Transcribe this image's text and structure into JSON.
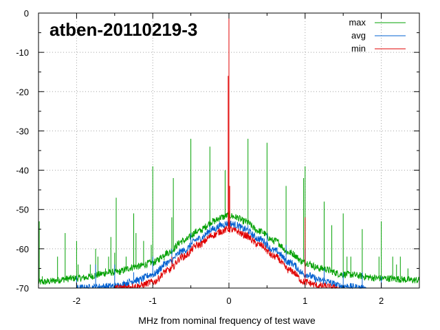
{
  "chart_data": {
    "type": "line",
    "title": "atben-20110219-3",
    "xlabel": "MHz from nominal frequency of test wave",
    "ylabel": "",
    "xlim": [
      -2.5,
      2.5
    ],
    "ylim": [
      -70,
      0
    ],
    "x_ticks": [
      -2,
      -1,
      0,
      1,
      2
    ],
    "y_ticks": [
      0,
      -10,
      -20,
      -30,
      -40,
      -50,
      -60,
      -70
    ],
    "x_tick_labels": [
      "-2",
      "-1",
      "0",
      "1",
      "2"
    ],
    "y_tick_labels": [
      "0",
      "-10",
      "-20",
      "-30",
      "-40",
      "-50",
      "-60",
      "-70"
    ],
    "grid": true,
    "legend_position": "top-right",
    "series": [
      {
        "name": "max",
        "color": "#00a000",
        "envelope": {
          "x": [
            -2.5,
            -2.0,
            -1.5,
            -1.2,
            -1.0,
            -0.8,
            -0.6,
            -0.4,
            -0.2,
            -0.1,
            0.0,
            0.1,
            0.2,
            0.4,
            0.6,
            0.8,
            1.0,
            1.2,
            1.5,
            2.0,
            2.5
          ],
          "y": [
            -68.5,
            -67.5,
            -66.0,
            -64.5,
            -63.5,
            -61.0,
            -58.0,
            -55.5,
            -53.0,
            -52.0,
            -51.5,
            -52.0,
            -53.0,
            -55.5,
            -58.0,
            -61.0,
            -63.5,
            -65.0,
            -66.5,
            -67.5,
            -68.0
          ]
        },
        "spikes": [
          {
            "x": -2.49,
            "y": -53
          },
          {
            "x": -2.45,
            "y": -67
          },
          {
            "x": -2.25,
            "y": -62
          },
          {
            "x": -2.15,
            "y": -56
          },
          {
            "x": -2.0,
            "y": -58
          },
          {
            "x": -1.98,
            "y": -64
          },
          {
            "x": -1.82,
            "y": -64
          },
          {
            "x": -1.75,
            "y": -60
          },
          {
            "x": -1.72,
            "y": -62
          },
          {
            "x": -1.62,
            "y": -65
          },
          {
            "x": -1.58,
            "y": -62
          },
          {
            "x": -1.55,
            "y": -57
          },
          {
            "x": -1.5,
            "y": -61
          },
          {
            "x": -1.48,
            "y": -47
          },
          {
            "x": -1.35,
            "y": -62
          },
          {
            "x": -1.25,
            "y": -51
          },
          {
            "x": -1.22,
            "y": -56
          },
          {
            "x": -1.12,
            "y": -58
          },
          {
            "x": -1.02,
            "y": -59
          },
          {
            "x": -1.0,
            "y": -39
          },
          {
            "x": -0.85,
            "y": -63
          },
          {
            "x": -0.75,
            "y": -52
          },
          {
            "x": -0.73,
            "y": -42
          },
          {
            "x": -0.5,
            "y": -32
          },
          {
            "x": -0.25,
            "y": -34
          },
          {
            "x": -0.05,
            "y": -40
          },
          {
            "x": 0.0,
            "y": 0
          },
          {
            "x": 0.25,
            "y": -32
          },
          {
            "x": 0.5,
            "y": -33
          },
          {
            "x": 0.75,
            "y": -44
          },
          {
            "x": 0.98,
            "y": -42
          },
          {
            "x": 1.0,
            "y": -39
          },
          {
            "x": 1.25,
            "y": -48
          },
          {
            "x": 1.35,
            "y": -54
          },
          {
            "x": 1.5,
            "y": -51
          },
          {
            "x": 1.55,
            "y": -62
          },
          {
            "x": 1.6,
            "y": -62
          },
          {
            "x": 1.75,
            "y": -55
          },
          {
            "x": 1.97,
            "y": -62
          },
          {
            "x": 2.0,
            "y": -53
          },
          {
            "x": 2.15,
            "y": -62
          },
          {
            "x": 2.2,
            "y": -64
          },
          {
            "x": 2.25,
            "y": -62
          },
          {
            "x": 2.35,
            "y": -65
          }
        ]
      },
      {
        "name": "avg",
        "color": "#0060d0",
        "envelope": {
          "x": [
            -2.0,
            -1.5,
            -1.2,
            -1.0,
            -0.8,
            -0.6,
            -0.4,
            -0.2,
            -0.1,
            0.0,
            0.1,
            0.2,
            0.4,
            0.6,
            0.8,
            1.0,
            1.2,
            1.5,
            1.8
          ],
          "y": [
            -70.0,
            -69.5,
            -68.0,
            -66.5,
            -63.5,
            -60.5,
            -57.5,
            -55.0,
            -54.0,
            -53.5,
            -54.0,
            -55.0,
            -57.5,
            -60.5,
            -63.5,
            -66.5,
            -68.0,
            -69.5,
            -70.0
          ]
        },
        "spikes": [
          {
            "x": -2.0,
            "y": -67
          },
          {
            "x": -1.75,
            "y": -64
          },
          {
            "x": -1.5,
            "y": -64
          },
          {
            "x": -1.25,
            "y": -66
          },
          {
            "x": -1.0,
            "y": -62
          },
          {
            "x": -0.75,
            "y": -60
          },
          {
            "x": -0.5,
            "y": -56
          },
          {
            "x": -0.25,
            "y": -54
          },
          {
            "x": 0.0,
            "y": 0
          },
          {
            "x": 0.25,
            "y": -54
          },
          {
            "x": 0.5,
            "y": -56
          },
          {
            "x": 0.75,
            "y": -59
          },
          {
            "x": 1.0,
            "y": -60
          },
          {
            "x": 1.25,
            "y": -65
          },
          {
            "x": 1.5,
            "y": -66
          },
          {
            "x": 1.75,
            "y": -66
          },
          {
            "x": 2.0,
            "y": -67
          }
        ]
      },
      {
        "name": "min",
        "color": "#e00000",
        "envelope": {
          "x": [
            -1.5,
            -1.2,
            -1.0,
            -0.8,
            -0.6,
            -0.4,
            -0.2,
            -0.1,
            0.0,
            0.1,
            0.2,
            0.4,
            0.6,
            0.8,
            1.0,
            1.2,
            1.45
          ],
          "y": [
            -70.0,
            -69.5,
            -68.5,
            -65.5,
            -62.0,
            -59.0,
            -56.5,
            -55.5,
            -55.0,
            -55.5,
            -56.5,
            -59.0,
            -62.0,
            -65.5,
            -68.5,
            -69.5,
            -70.0
          ]
        },
        "spikes": [
          {
            "x": -0.75,
            "y": -62
          },
          {
            "x": -0.01,
            "y": -16
          },
          {
            "x": 0.0,
            "y": 0
          },
          {
            "x": 0.01,
            "y": -44
          },
          {
            "x": 1.0,
            "y": -52
          }
        ]
      }
    ]
  }
}
